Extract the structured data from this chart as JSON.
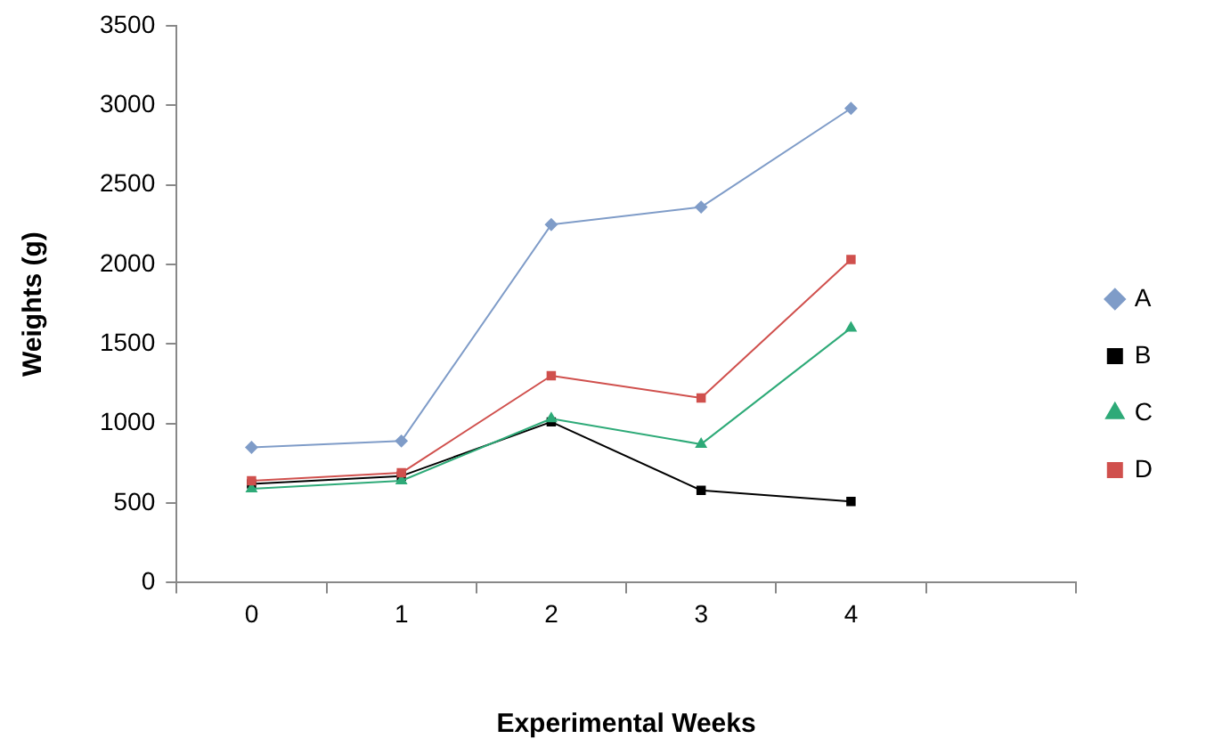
{
  "chart_data": {
    "type": "line",
    "xlabel": "Experimental Weeks",
    "ylabel": "Weights (g)",
    "categories": [
      "0",
      "1",
      "2",
      "3",
      "4",
      null
    ],
    "ylim": [
      0,
      3500
    ],
    "yticks": [
      0,
      500,
      1000,
      1500,
      2000,
      2500,
      3000,
      3500
    ],
    "grid": false,
    "legend": "right",
    "series": [
      {
        "name": "A",
        "color": "#7f9cc8",
        "marker": "diamond",
        "values": [
          850,
          890,
          2250,
          2360,
          2980,
          null
        ]
      },
      {
        "name": "B",
        "color": "#000000",
        "marker": "square",
        "values": [
          620,
          670,
          1010,
          580,
          510,
          null
        ]
      },
      {
        "name": "C",
        "color": "#2eaa78",
        "marker": "triangle",
        "values": [
          590,
          640,
          1030,
          870,
          1600,
          null
        ]
      },
      {
        "name": "D",
        "color": "#d0504d",
        "marker": "square",
        "values": [
          640,
          690,
          1300,
          1160,
          2030,
          null
        ]
      }
    ]
  }
}
